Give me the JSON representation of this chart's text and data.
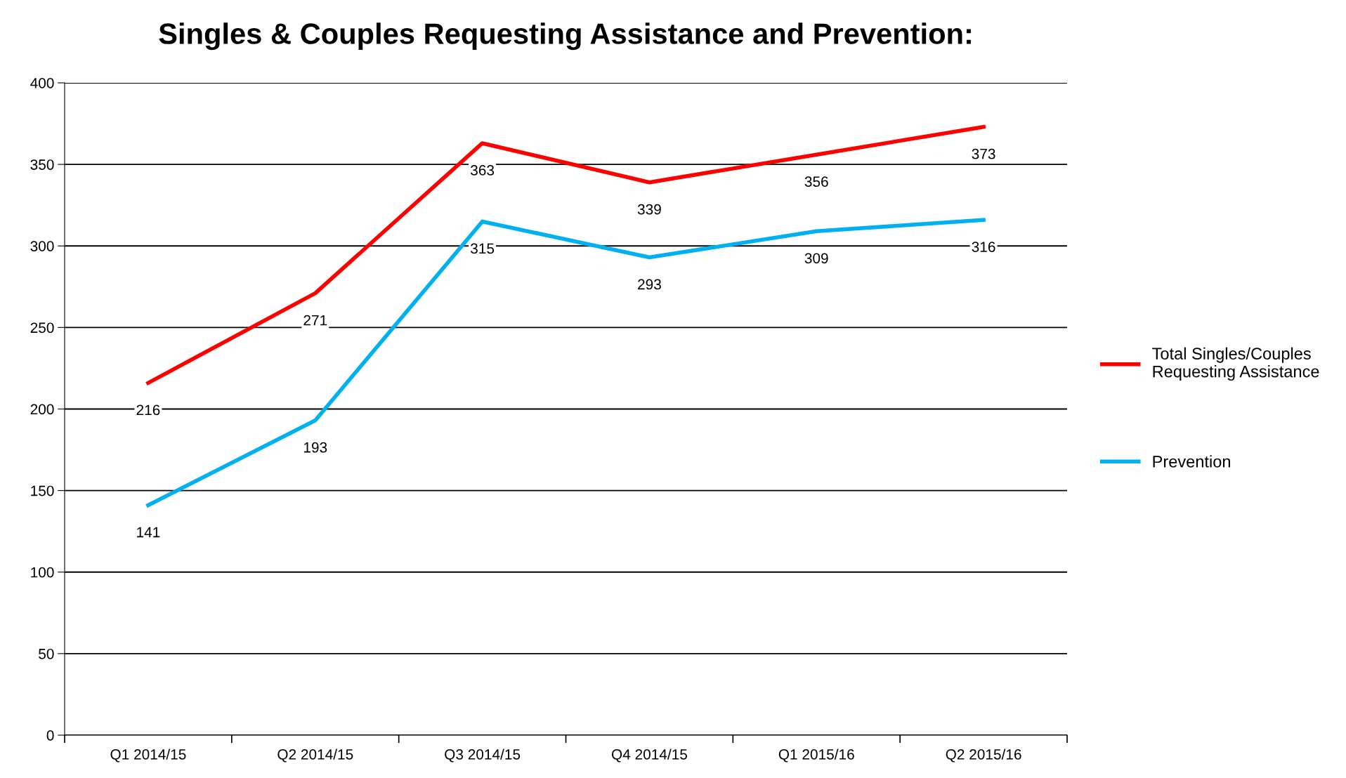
{
  "chart_data": {
    "type": "line",
    "title": "Singles & Couples Requesting Assistance and Prevention:",
    "categories": [
      "Q1 2014/15",
      "Q2 2014/15",
      "Q3 2014/15",
      "Q4 2014/15",
      "Q1 2015/16",
      "Q2 2015/16"
    ],
    "series": [
      {
        "name": "Total Singles/Couples\nRequesting Assistance",
        "color": "#ff0000",
        "values": [
          216,
          271,
          363,
          339,
          356,
          373
        ]
      },
      {
        "name": "Prevention",
        "color": "#00b0f0",
        "values": [
          141,
          193,
          315,
          293,
          309,
          316
        ]
      }
    ],
    "ylim": [
      0,
      400
    ],
    "yticks": [
      0,
      50,
      100,
      150,
      200,
      250,
      300,
      350,
      400
    ],
    "grid": "y",
    "legend": "right",
    "data_labels": true,
    "marker": "none",
    "line_style": "solid"
  }
}
